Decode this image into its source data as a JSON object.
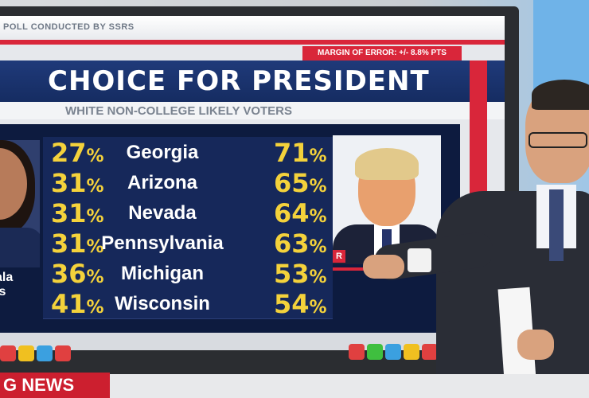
{
  "poll_credit": "POLL CONDUCTED BY SSRS",
  "margin_of_error": "MARGIN OF ERROR: +/- 8.8% PTS",
  "title": "CHOICE FOR PRESIDENT",
  "subtitle": "WHITE NON-COLLEGE LIKELY VOTERS",
  "left_candidate_name": "ala\nis",
  "right_candidate_badge": "R",
  "ticker_text": "G NEWS",
  "rows": [
    {
      "state": "Georgia",
      "left": "27",
      "right": "71"
    },
    {
      "state": "Arizona",
      "left": "31",
      "right": "65"
    },
    {
      "state": "Nevada",
      "left": "31",
      "right": "64"
    },
    {
      "state": "Pennsylvania",
      "left": "31",
      "right": "63"
    },
    {
      "state": "Michigan",
      "left": "36",
      "right": "53"
    },
    {
      "state": "Wisconsin",
      "left": "41",
      "right": "54"
    }
  ],
  "button_colors_left": [
    "#e04040",
    "#f0c020",
    "#3ba0e0",
    "#e04040"
  ],
  "button_colors_right": [
    "#e04040",
    "#3fbf3f",
    "#3ba0e0",
    "#f0c020",
    "#e04040"
  ]
}
